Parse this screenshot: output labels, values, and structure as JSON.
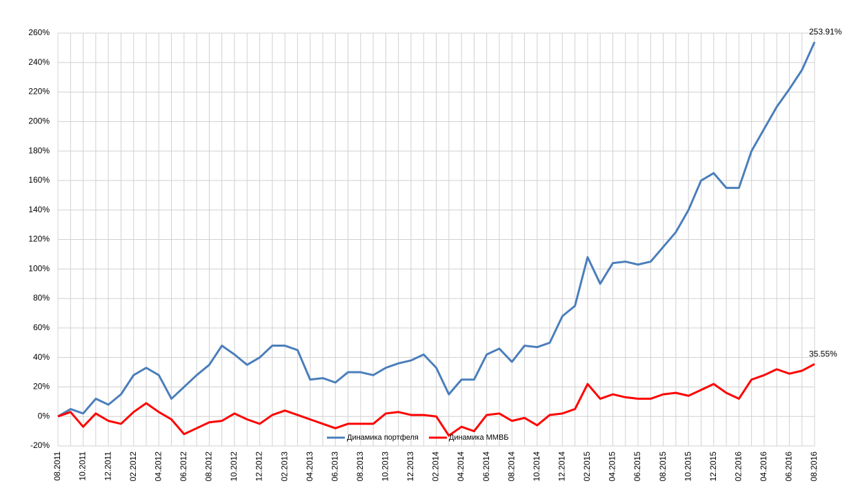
{
  "chart_data": {
    "type": "line",
    "categories": [
      "08.2011",
      null,
      "10.2011",
      null,
      "12.2011",
      null,
      "02.2012",
      null,
      "04.2012",
      null,
      "06.2012",
      null,
      "08.2012",
      null,
      "10.2012",
      null,
      "12.2012",
      null,
      "02.2013",
      null,
      "04.2013",
      null,
      "06.2013",
      null,
      "08.2013",
      null,
      "10.2013",
      null,
      "12.2013",
      null,
      "02.2014",
      null,
      "04.2014",
      null,
      "06.2014",
      null,
      "08.2014",
      null,
      "10.2014",
      null,
      "12.2014",
      null,
      "02.2015",
      null,
      "04.2015",
      null,
      "06.2015",
      null,
      "08.2015",
      null,
      "10.2015",
      null,
      "12.2015",
      null,
      "02.2016",
      null,
      "04.2016",
      null,
      "06.2016",
      null,
      "08.2016"
    ],
    "series": [
      {
        "name": "Динамика портфеля",
        "color": "#4a7ebb",
        "values": [
          0,
          5,
          2,
          12,
          8,
          15,
          28,
          33,
          28,
          12,
          20,
          28,
          35,
          48,
          42,
          35,
          40,
          48,
          48,
          45,
          25,
          26,
          23,
          30,
          30,
          28,
          33,
          36,
          38,
          42,
          33,
          15,
          25,
          25,
          42,
          46,
          37,
          48,
          47,
          50,
          68,
          75,
          108,
          90,
          104,
          105,
          103,
          105,
          115,
          125,
          140,
          160,
          165,
          155,
          155,
          180,
          195,
          210,
          222,
          235,
          253.91
        ],
        "value_labels": [
          null,
          null,
          null,
          null,
          null,
          null,
          null,
          null,
          null,
          null,
          null,
          null,
          null,
          null,
          null,
          null,
          null,
          null,
          null,
          null,
          null,
          null,
          null,
          null,
          null,
          null,
          null,
          null,
          null,
          null,
          null,
          null,
          null,
          null,
          null,
          null,
          null,
          null,
          null,
          null,
          null,
          null,
          null,
          null,
          null,
          null,
          null,
          null,
          null,
          null,
          null,
          null,
          null,
          null,
          null,
          null,
          null,
          null,
          null,
          null,
          "253.91%"
        ]
      },
      {
        "name": "Динамика ММВБ",
        "color": "#ff0000",
        "values": [
          0,
          3,
          -7,
          2,
          -3,
          -5,
          3,
          9,
          3,
          -2,
          -12,
          -8,
          -4,
          -3,
          2,
          -2,
          -5,
          1,
          4,
          1,
          -2,
          -5,
          -8,
          -5,
          -5,
          -5,
          2,
          3,
          1,
          1,
          0,
          -13,
          -7,
          -10,
          1,
          2,
          -3,
          -1,
          -6,
          1,
          2,
          5,
          22,
          12,
          15,
          13,
          12,
          12,
          15,
          16,
          14,
          18,
          22,
          16,
          12,
          25,
          28,
          32,
          29,
          31,
          35.55
        ],
        "value_labels": [
          null,
          null,
          null,
          null,
          null,
          null,
          null,
          null,
          null,
          null,
          null,
          null,
          null,
          null,
          null,
          null,
          null,
          null,
          null,
          null,
          null,
          null,
          null,
          null,
          null,
          null,
          null,
          null,
          null,
          null,
          null,
          null,
          null,
          null,
          null,
          null,
          null,
          null,
          null,
          null,
          null,
          null,
          null,
          null,
          null,
          null,
          null,
          null,
          null,
          null,
          null,
          null,
          null,
          null,
          null,
          null,
          null,
          null,
          null,
          null,
          "35.55%"
        ]
      }
    ],
    "ylim": [
      -20,
      260
    ],
    "yticks": [
      {
        "value": -20,
        "label": "-20%"
      },
      {
        "value": 0,
        "label": "0%"
      },
      {
        "value": 20,
        "label": "20%"
      },
      {
        "value": 40,
        "label": "40%"
      },
      {
        "value": 60,
        "label": "60%"
      },
      {
        "value": 80,
        "label": "80%"
      },
      {
        "value": 100,
        "label": "100%"
      },
      {
        "value": 120,
        "label": "120%"
      },
      {
        "value": 140,
        "label": "140%"
      },
      {
        "value": 160,
        "label": "160%"
      },
      {
        "value": 180,
        "label": "180%"
      },
      {
        "value": 200,
        "label": "200%"
      },
      {
        "value": 220,
        "label": "220%"
      },
      {
        "value": 240,
        "label": "240%"
      },
      {
        "value": 260,
        "label": "260%"
      }
    ],
    "grid": true,
    "legend": "bottom"
  }
}
